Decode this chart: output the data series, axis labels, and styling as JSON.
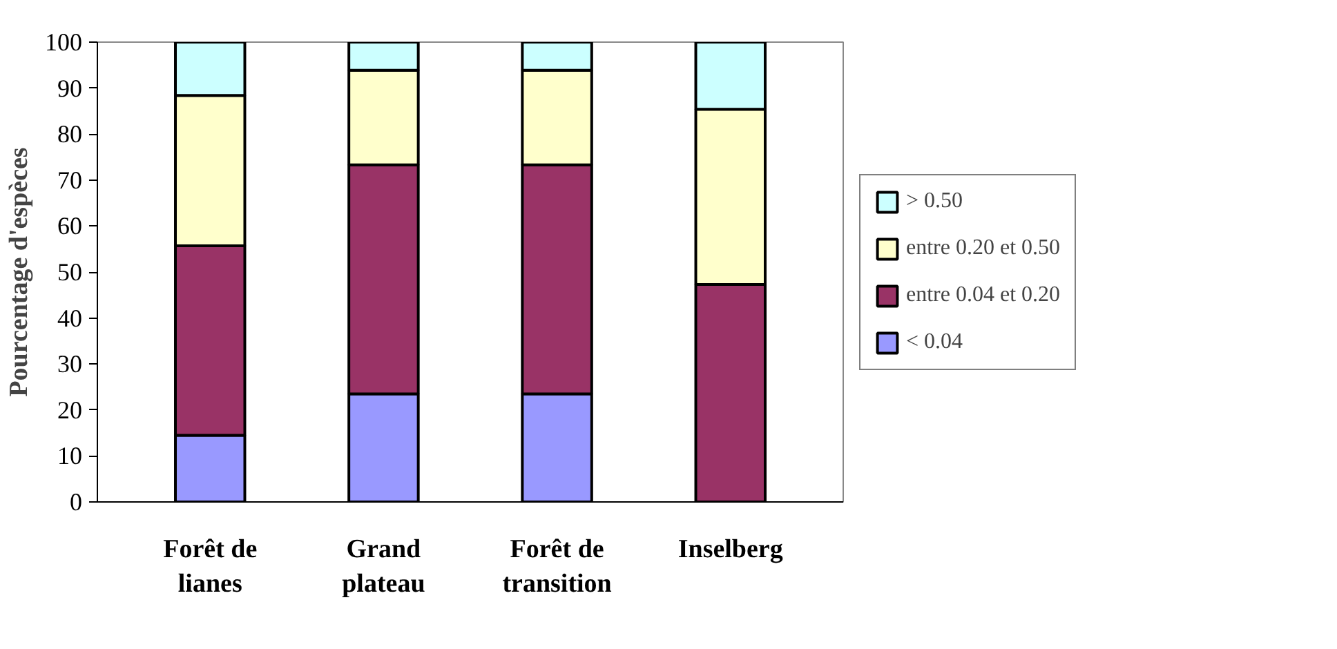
{
  "chart_data": {
    "type": "bar",
    "stacked": true,
    "ylabel": "Pourcentage d'espèces",
    "categories": [
      "Forêt de lianes",
      "Grand plateau",
      "Forêt de transition",
      "Inselberg"
    ],
    "series": [
      {
        "name": "< 0.04",
        "color": "#9999ff",
        "values": [
          14.5,
          23.5,
          23.5,
          0
        ]
      },
      {
        "name": "entre 0.04 et 0.20",
        "color": "#993366",
        "values": [
          41.2,
          49.8,
          49.8,
          47.3
        ]
      },
      {
        "name": "entre 0.20 et 0.50",
        "color": "#ffffcc",
        "values": [
          32.7,
          20.6,
          20.6,
          38.1
        ]
      },
      {
        "name": "> 0.50",
        "color": "#ccffff",
        "values": [
          11.6,
          6.1,
          6.1,
          14.6
        ]
      }
    ],
    "ylim": [
      0,
      100
    ],
    "yticks": [
      0,
      10,
      20,
      30,
      40,
      50,
      60,
      70,
      80,
      90,
      100
    ],
    "grid": false,
    "legend": "right"
  }
}
